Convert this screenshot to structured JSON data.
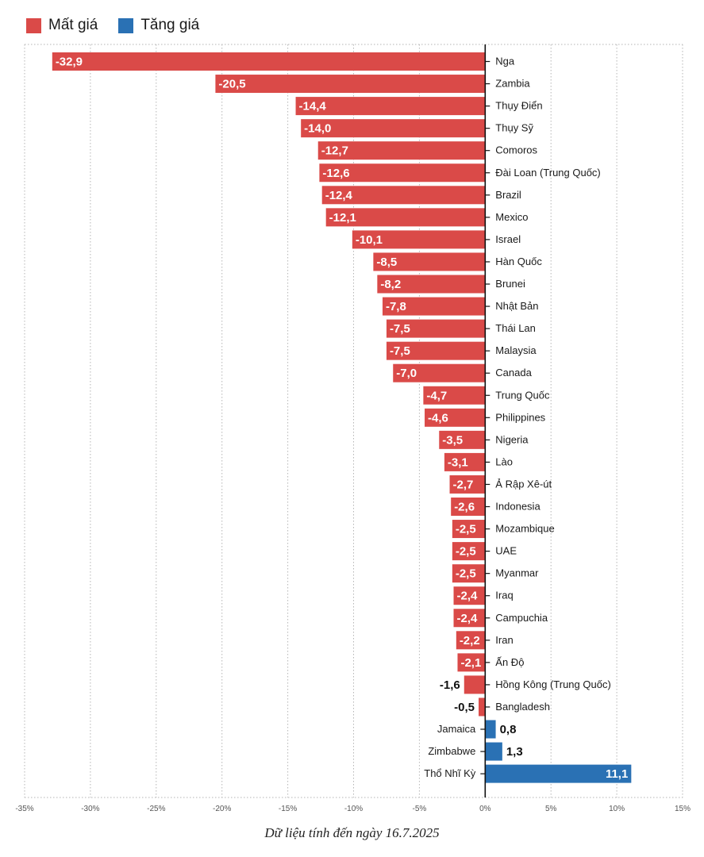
{
  "legend": {
    "items": [
      {
        "label": "Mất giá",
        "color": "#da4a48"
      },
      {
        "label": "Tăng giá",
        "color": "#2a71b4"
      }
    ]
  },
  "footnote": "Dữ liệu tính đến ngày 16.7.2025",
  "chart_data": {
    "type": "bar",
    "orientation": "horizontal",
    "xlim": [
      -35,
      15
    ],
    "x_ticks": [
      -35,
      -30,
      -25,
      -20,
      -15,
      -10,
      -5,
      0,
      5,
      10,
      15
    ],
    "x_tick_labels": [
      "-35%",
      "-30%",
      "-25%",
      "-20%",
      "-15%",
      "-10%",
      "-5%",
      "0%",
      "5%",
      "10%",
      "15%"
    ],
    "grid": "vertical dotted",
    "legend_position": "top-left",
    "colors": {
      "negative": "#da4a48",
      "positive": "#2a71b4"
    },
    "categories": [
      "Nga",
      "Zambia",
      "Thụy Điển",
      "Thụy Sỹ",
      "Comoros",
      "Đài Loan (Trung Quốc)",
      "Brazil",
      "Mexico",
      "Israel",
      "Hàn Quốc",
      "Brunei",
      "Nhật Bản",
      "Thái Lan",
      "Malaysia",
      "Canada",
      "Trung Quốc",
      "Philippines",
      "Nigeria",
      "Lào",
      "Ả Rập Xê-út",
      "Indonesia",
      "Mozambique",
      "UAE",
      "Myanmar",
      "Iraq",
      "Campuchia",
      "Iran",
      "Ấn Độ",
      "Hồng Kông (Trung Quốc)",
      "Bangladesh",
      "Jamaica",
      "Zimbabwe",
      "Thổ Nhĩ Kỳ"
    ],
    "values": [
      -32.9,
      -20.5,
      -14.4,
      -14.0,
      -12.7,
      -12.6,
      -12.4,
      -12.1,
      -10.1,
      -8.5,
      -8.2,
      -7.8,
      -7.5,
      -7.5,
      -7.0,
      -4.7,
      -4.6,
      -3.5,
      -3.1,
      -2.7,
      -2.6,
      -2.5,
      -2.5,
      -2.5,
      -2.4,
      -2.4,
      -2.2,
      -2.1,
      -1.6,
      -0.5,
      0.8,
      1.3,
      11.1
    ],
    "value_labels": [
      "-32,9",
      "-20,5",
      "-14,4",
      "-14,0",
      "-12,7",
      "-12,6",
      "-12,4",
      "-12,1",
      "-10,1",
      "-8,5",
      "-8,2",
      "-7,8",
      "-7,5",
      "-7,5",
      "-7,0",
      "-4,7",
      "-4,6",
      "-3,5",
      "-3,1",
      "-2,7",
      "-2,6",
      "-2,5",
      "-2,5",
      "-2,5",
      "-2,4",
      "-2,4",
      "-2,2",
      "-2,1",
      "-1,6",
      "-0,5",
      "0,8",
      "1,3",
      "11,1"
    ]
  }
}
